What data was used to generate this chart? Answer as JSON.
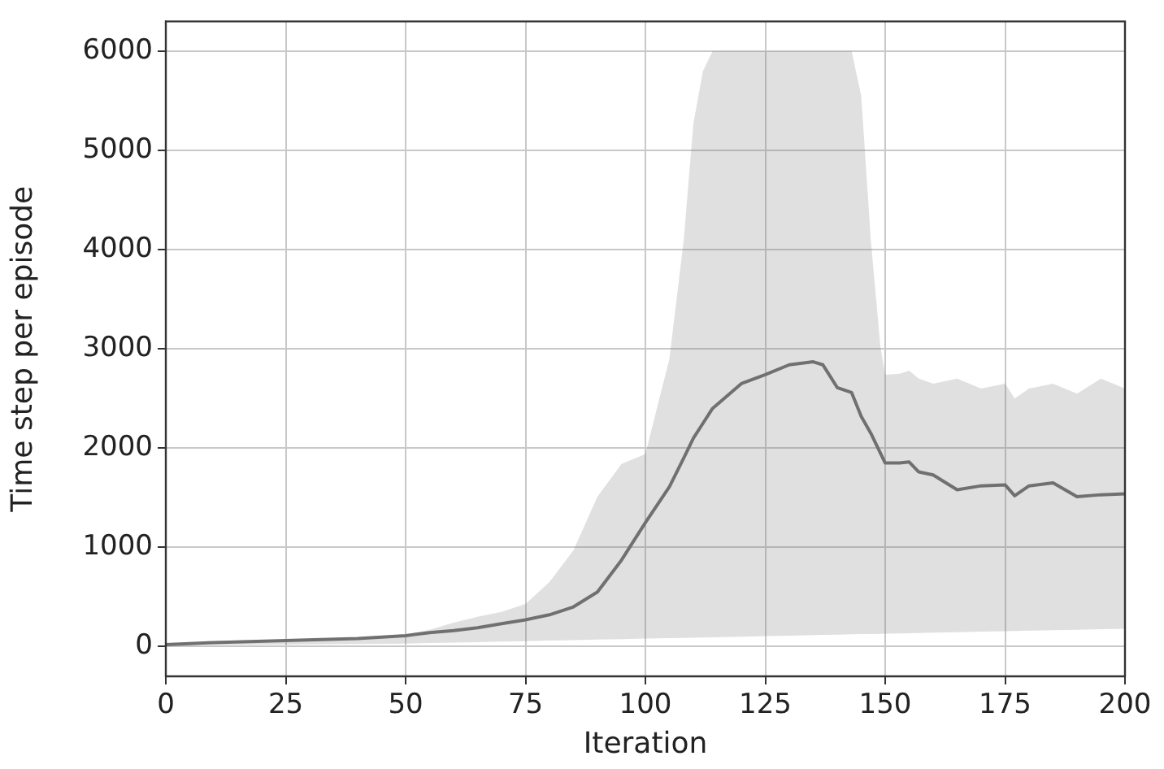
{
  "chart_data": {
    "type": "line",
    "xlabel": "Iteration",
    "ylabel": "Time step per episode",
    "xlim": [
      0,
      200
    ],
    "xticks": [
      0,
      25,
      50,
      75,
      100,
      125,
      150,
      175,
      200
    ],
    "ylim": [
      -300,
      6300
    ],
    "yticks": [
      0,
      1000,
      2000,
      3000,
      4000,
      5000,
      6000
    ],
    "grid": true,
    "legend": false,
    "marker": "none",
    "line_style": "solid",
    "series": [
      {
        "color": "#707070",
        "x": [
          0,
          10,
          25,
          40,
          50,
          55,
          60,
          65,
          70,
          75,
          80,
          85,
          90,
          95,
          100,
          105,
          108,
          110,
          112,
          114,
          120,
          125,
          130,
          135,
          137,
          140,
          143,
          145,
          147,
          149,
          150,
          153,
          155,
          157,
          160,
          165,
          170,
          175,
          177,
          180,
          185,
          190,
          195,
          200
        ],
        "values": [
          20,
          40,
          60,
          80,
          110,
          140,
          160,
          190,
          230,
          270,
          320,
          400,
          550,
          870,
          1250,
          1610,
          1900,
          2100,
          2250,
          2400,
          2650,
          2740,
          2840,
          2870,
          2840,
          2610,
          2560,
          2320,
          2150,
          1950,
          1850,
          1850,
          1860,
          1760,
          1730,
          1580,
          1620,
          1630,
          1520,
          1620,
          1650,
          1510,
          1530,
          1540
        ],
        "upper": [
          30,
          50,
          70,
          90,
          120,
          170,
          240,
          300,
          350,
          430,
          650,
          970,
          1510,
          1840,
          1940,
          2900,
          4100,
          5270,
          5800,
          6000,
          6000,
          6000,
          6000,
          6000,
          6000,
          6000,
          6000,
          5550,
          4100,
          3020,
          2740,
          2750,
          2780,
          2700,
          2650,
          2700,
          2600,
          2650,
          2500,
          2600,
          2650,
          2550,
          2700,
          2600
        ],
        "lower": [
          10,
          15,
          20,
          25,
          30,
          35,
          40,
          45,
          50,
          55,
          60,
          65,
          70,
          75,
          80,
          85,
          88,
          90,
          92,
          94,
          100,
          105,
          110,
          115,
          117,
          120,
          123,
          125,
          127,
          129,
          130,
          133,
          135,
          137,
          140,
          145,
          150,
          155,
          157,
          160,
          165,
          170,
          175,
          180
        ]
      }
    ]
  }
}
